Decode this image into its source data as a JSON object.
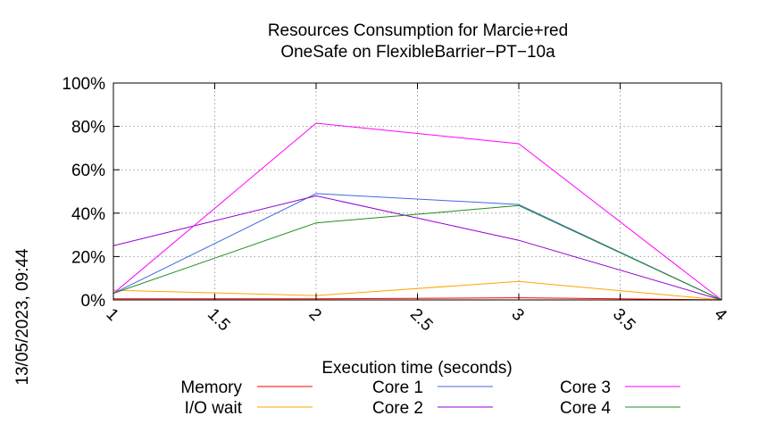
{
  "chart_data": {
    "type": "line",
    "title": [
      "Resources Consumption for Marcie+red",
      "OneSafe on FlexibleBarrier−PT−10a"
    ],
    "xlabel": "Execution time (seconds)",
    "ylabel": "",
    "side_label": "13/05/2023, 09:44",
    "xlim": [
      1,
      4
    ],
    "ylim": [
      0,
      100
    ],
    "xticks": [
      1,
      1.5,
      2,
      2.5,
      3,
      3.5,
      4
    ],
    "xtick_labels": [
      "1",
      "1.5",
      "2",
      "2.5",
      "3",
      "3.5",
      "4"
    ],
    "yticks": [
      0,
      20,
      40,
      60,
      80,
      100
    ],
    "ytick_labels": [
      "0%",
      "20%",
      "40%",
      "60%",
      "80%",
      "100%"
    ],
    "grid": true,
    "legend_position": "bottom",
    "x": [
      1,
      2,
      3,
      4
    ],
    "series": [
      {
        "name": "Memory",
        "color": "#ff0000",
        "values": [
          0.5,
          0.5,
          1,
          0
        ]
      },
      {
        "name": "I/O wait",
        "color": "#ffa500",
        "values": [
          4.5,
          2,
          8.5,
          0
        ]
      },
      {
        "name": "Core 1",
        "color": "#4169e1",
        "values": [
          3,
          49,
          44,
          0
        ]
      },
      {
        "name": "Core 2",
        "color": "#9400d3",
        "values": [
          25,
          48,
          27.5,
          0
        ]
      },
      {
        "name": "Core 3",
        "color": "#ff00ff",
        "values": [
          3,
          81.5,
          72,
          0
        ]
      },
      {
        "name": "Core 4",
        "color": "#228b22",
        "values": [
          3,
          35.5,
          43.5,
          0
        ]
      }
    ]
  }
}
